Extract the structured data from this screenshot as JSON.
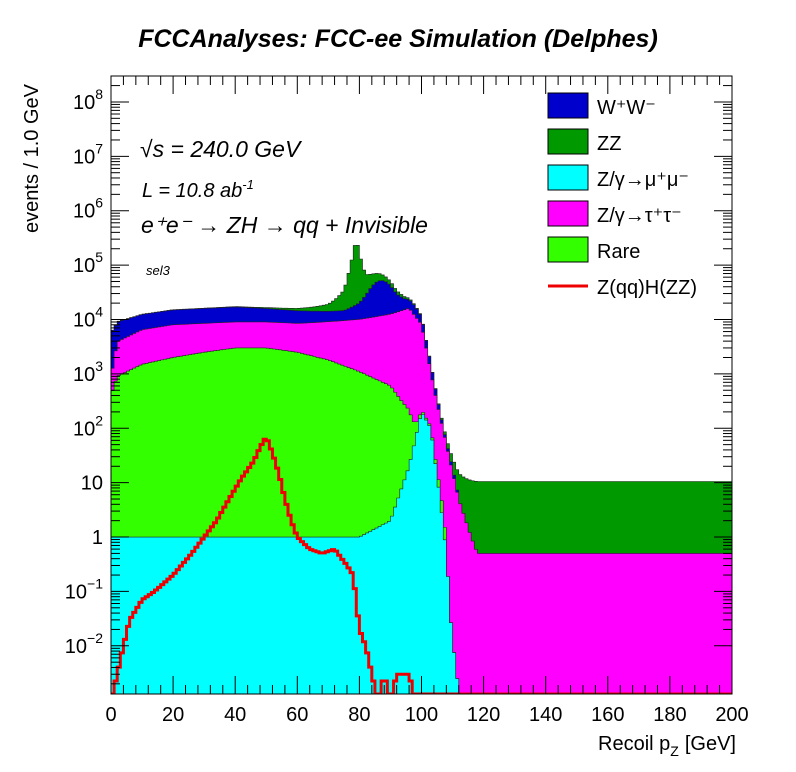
{
  "chart_data": {
    "type": "area",
    "title": "FCCAnalyses: FCC-ee Simulation (Delphes)",
    "xlabel": "Recoil p",
    "xlabel_sub": "Z",
    "xlabel_unit": "[GeV]",
    "ylabel": "events / 1.0 GeV",
    "xlim": [
      0,
      200
    ],
    "ylim": [
      0.0013,
      300000000
    ],
    "yscale": "log",
    "grid": false,
    "legend_position": "top-right",
    "stacked": true,
    "x_ticks": [
      "0",
      "20",
      "40",
      "60",
      "80",
      "100",
      "120",
      "140",
      "160",
      "180",
      "200"
    ],
    "y_ticks": [
      {
        "value": 0.01,
        "mantissa": "10",
        "exp": "−2"
      },
      {
        "value": 0.1,
        "mantissa": "10",
        "exp": "−1"
      },
      {
        "value": 1,
        "mantissa": "1",
        "exp": ""
      },
      {
        "value": 10,
        "mantissa": "10",
        "exp": ""
      },
      {
        "value": 100,
        "mantissa": "10",
        "exp": "2"
      },
      {
        "value": 1000,
        "mantissa": "10",
        "exp": "3"
      },
      {
        "value": 10000,
        "mantissa": "10",
        "exp": "4"
      },
      {
        "value": 100000,
        "mantissa": "10",
        "exp": "5"
      },
      {
        "value": 1000000,
        "mantissa": "10",
        "exp": "6"
      },
      {
        "value": 10000000,
        "mantissa": "10",
        "exp": "7"
      },
      {
        "value": 100000000,
        "mantissa": "10",
        "exp": "8"
      }
    ],
    "annotations": {
      "sqrt_s": "√s = 240.0 GeV",
      "lumi_prefix": "L = 10.8 ab",
      "lumi_exp": "-1",
      "process": "e⁺e⁻ → ZH → qq + Invisible",
      "selection": "sel3"
    },
    "series_order_bottom_to_top": [
      "Z/γ→μ⁺μ⁻",
      "Rare",
      "Z/γ→τ⁺τ⁻",
      "W⁺W⁻",
      "ZZ"
    ],
    "series": [
      {
        "name": "W⁺W⁻",
        "color": "#0000cc",
        "style": "filled",
        "x": [
          0,
          20,
          40,
          60,
          70,
          75,
          80,
          84,
          86,
          88,
          90,
          92,
          95,
          98,
          100,
          104,
          108,
          112,
          116,
          118
        ],
        "values": [
          5000,
          7000,
          8000,
          6000,
          5000,
          5000,
          10000,
          30000,
          40000,
          40000,
          30000,
          16000,
          8000,
          6000,
          3000,
          200,
          5,
          0,
          0,
          0
        ]
      },
      {
        "name": "ZZ",
        "color": "#009900",
        "style": "filled",
        "x": [
          0,
          20,
          40,
          60,
          70,
          75,
          78,
          79,
          80,
          82,
          86,
          90,
          95,
          100,
          104
        ],
        "values": [
          50,
          100,
          300,
          1500,
          5000,
          20000,
          150000,
          300000,
          150000,
          40000,
          20000,
          8000,
          2000,
          300,
          10
        ]
      },
      {
        "name": "Z/γ→μ⁺μ⁻",
        "color": "#00ffff",
        "style": "filled",
        "x": [
          0,
          20,
          40,
          60,
          80,
          90,
          96,
          100,
          103,
          106,
          108,
          110,
          112
        ],
        "values": [
          1,
          1,
          1,
          1,
          1,
          2,
          20,
          200,
          100,
          5,
          0.5,
          0.01,
          0
        ]
      },
      {
        "name": "Z/γ→τ⁺τ⁻",
        "color": "#ff00ff",
        "style": "filled",
        "x": [
          0,
          2,
          10,
          20,
          40,
          60,
          80,
          90,
          96,
          100,
          104,
          108,
          112,
          116,
          118
        ],
        "values": [
          500,
          3000,
          5000,
          6000,
          6000,
          6000,
          9000,
          12000,
          16000,
          8000,
          500,
          50,
          5,
          1,
          0.5
        ]
      },
      {
        "name": "Rare",
        "color": "#33ff00",
        "style": "filled",
        "x": [
          0,
          2,
          10,
          20,
          30,
          40,
          50,
          60,
          70,
          80,
          90,
          96,
          100,
          104,
          108
        ],
        "values": [
          400,
          900,
          1500,
          2000,
          2500,
          3000,
          3000,
          2500,
          1800,
          1100,
          600,
          200,
          20,
          5,
          0
        ]
      },
      {
        "name": "Z(qq)H(ZZ)",
        "color": "#ee0000",
        "style": "line",
        "x": [
          0,
          2,
          4,
          6,
          10,
          14,
          20,
          26,
          30,
          34,
          38,
          42,
          46,
          48,
          50,
          52,
          54,
          56,
          58,
          60,
          64,
          68,
          72,
          76,
          78,
          80,
          82,
          84,
          86,
          88,
          90,
          92,
          94,
          96,
          98,
          100
        ],
        "values": [
          0,
          0.003,
          0.01,
          0.03,
          0.07,
          0.1,
          0.2,
          0.5,
          1,
          2,
          5,
          12,
          25,
          45,
          70,
          35,
          15,
          5,
          2,
          1,
          0.6,
          0.5,
          0.6,
          0.3,
          0.2,
          0.02,
          0.01,
          0.003,
          0,
          0.003,
          0,
          0.003,
          0.003,
          0.003,
          0,
          0
        ]
      }
    ]
  }
}
